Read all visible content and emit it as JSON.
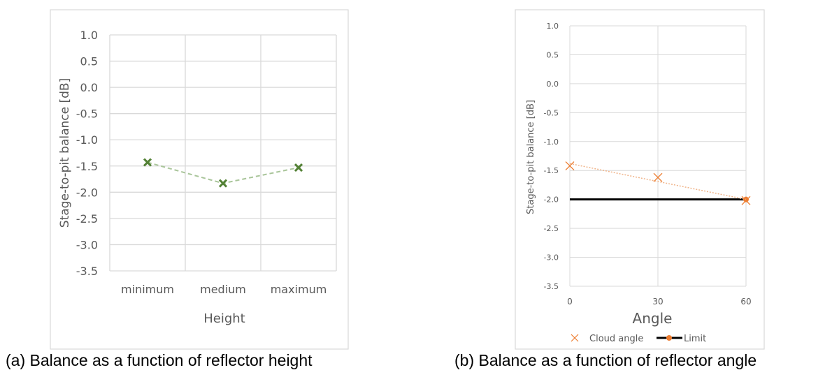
{
  "chart_data": [
    {
      "type": "line",
      "title": "",
      "caption": "(a) Balance as a function of reflector height",
      "xlabel": "Height",
      "ylabel": "Stage-to-pit balance [dB]",
      "categories": [
        "minimum",
        "medium",
        "maximum"
      ],
      "ylim": [
        -3.5,
        1.0
      ],
      "yticks": [
        "1.0",
        "0.5",
        "0.0",
        "-0.5",
        "-1.0",
        "-1.5",
        "-2.0",
        "-2.5",
        "-3.0",
        "-3.5"
      ],
      "grid": true,
      "series": [
        {
          "name": "Height",
          "values": [
            -1.43,
            -1.83,
            -1.53
          ],
          "color": "#538135",
          "marker": "x",
          "line": "dashed"
        }
      ]
    },
    {
      "type": "scatter",
      "title": "",
      "caption": "(b) Balance as a function of reflector angle",
      "xlabel": "Angle",
      "ylabel": "Stage-to-pit balance [dB]",
      "x": [
        0,
        30,
        60
      ],
      "xticks": [
        "0",
        "30",
        "60"
      ],
      "xlim": [
        0,
        60
      ],
      "ylim": [
        -3.5,
        1.0
      ],
      "yticks": [
        "1.0",
        "0.5",
        "0.0",
        "-0.5",
        "-1.0",
        "-1.5",
        "-2.0",
        "-2.5",
        "-3.0",
        "-3.5"
      ],
      "grid": true,
      "legend_position": "bottom",
      "series": [
        {
          "name": "Cloud angle",
          "values": [
            -1.42,
            -1.62,
            -2.02
          ],
          "color": "#ED7D31",
          "marker": "x",
          "trendline": [
            -1.38,
            -2.0
          ]
        },
        {
          "name": "Limit",
          "values": [
            -2.0,
            null,
            -2.0
          ],
          "color": "#000000",
          "marker_color": "#ED7D31"
        }
      ]
    }
  ]
}
